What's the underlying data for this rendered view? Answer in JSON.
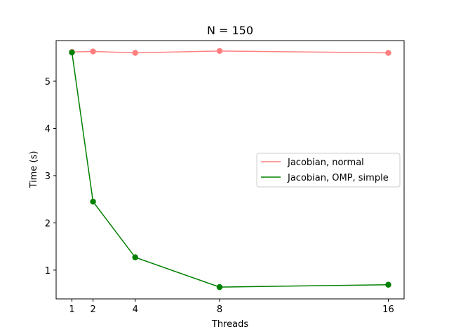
{
  "chart_data": {
    "type": "line",
    "title": "N = 150",
    "xlabel": "Threads",
    "ylabel": "Time (s)",
    "x": [
      1,
      2,
      4,
      8,
      16
    ],
    "xticks": [
      1,
      2,
      4,
      8,
      16
    ],
    "yticks": [
      1,
      2,
      3,
      4,
      5
    ],
    "xlim": [
      0.25,
      16.75
    ],
    "ylim": [
      0.39,
      5.86
    ],
    "grid": false,
    "legend_position": "center-right",
    "series": [
      {
        "name": "Jacobian, normal",
        "values": [
          5.62,
          5.63,
          5.6,
          5.64,
          5.6
        ],
        "color": "#ff0000",
        "opacity": 0.5,
        "marker": "circle"
      },
      {
        "name": "Jacobian, OMP, simple",
        "values": [
          5.61,
          2.45,
          1.27,
          0.64,
          0.69
        ],
        "color": "#008000",
        "opacity": 1.0,
        "marker": "circle"
      }
    ]
  }
}
